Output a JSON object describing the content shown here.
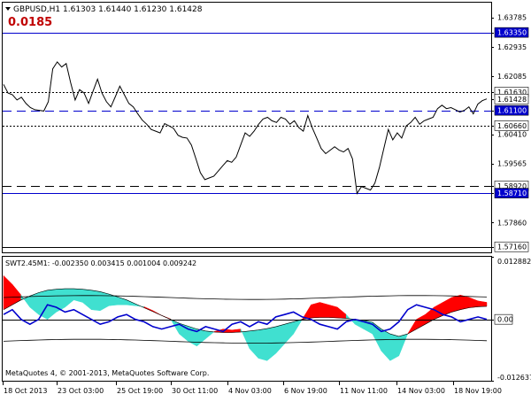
{
  "header": {
    "symbol_line": "GBPUSD,H1  1.61303 1.61440 1.61230 1.61428",
    "spread_value": "0.0185"
  },
  "indicator_header": "SWT2.45M1: -0.002350 0.003415 0.001004 0.009242",
  "copyright": "MetaQuotes 4, © 2001-2013, MetaQuotes Software Corp.",
  "colors": {
    "price_line": "#000000",
    "blue_levels": "#0000cd",
    "fill_red": "#ff0000",
    "fill_cyan": "#40e0d0",
    "signal_line": "#0000cd",
    "label_box": "#0000cd",
    "spread_text": "#c00000"
  },
  "chart_data": [
    {
      "type": "line",
      "title": "GBPUSD,H1",
      "price_axis_labels": [
        "1.63785",
        "1.63350",
        "1.62935",
        "1.62085",
        "1.61630",
        "1.61428",
        "1.61100",
        "1.60660",
        "1.60410",
        "1.59565",
        "1.58920",
        "1.58710",
        "1.57860",
        "1.57160"
      ],
      "ylim": [
        1.57,
        1.6421
      ],
      "close_series": [
        1.6185,
        1.616,
        1.6155,
        1.614,
        1.6148,
        1.613,
        1.6118,
        1.6112,
        1.611,
        1.6108,
        1.6135,
        1.623,
        1.625,
        1.6235,
        1.6245,
        1.619,
        1.614,
        1.617,
        1.616,
        1.613,
        1.6165,
        1.62,
        1.616,
        1.6135,
        1.612,
        1.615,
        1.618,
        1.6155,
        1.613,
        1.612,
        1.61,
        1.6082,
        1.607,
        1.6055,
        1.605,
        1.6045,
        1.6072,
        1.6065,
        1.6058,
        1.6038,
        1.6032,
        1.603,
        1.601,
        1.597,
        1.593,
        1.591,
        1.5915,
        1.592,
        1.5935,
        1.595,
        1.5965,
        1.596,
        1.5975,
        1.601,
        1.6045,
        1.6035,
        1.605,
        1.607,
        1.6085,
        1.609,
        1.608,
        1.6075,
        1.609,
        1.6085,
        1.607,
        1.608,
        1.606,
        1.605,
        1.6095,
        1.606,
        1.603,
        1.6,
        1.5985,
        1.5995,
        1.6005,
        1.5995,
        1.599,
        1.6,
        1.597,
        1.587,
        1.589,
        1.5885,
        1.588,
        1.59,
        1.5945,
        1.6,
        1.6055,
        1.6025,
        1.6045,
        1.603,
        1.6065,
        1.6075,
        1.609,
        1.607,
        1.608,
        1.6085,
        1.609,
        1.6115,
        1.6125,
        1.6115,
        1.6118,
        1.6112,
        1.6105,
        1.611,
        1.612,
        1.61,
        1.6128,
        1.6138,
        1.6143
      ],
      "horizontal_levels": [
        {
          "price": 1.6335,
          "style": "solid",
          "color": "#0000cd",
          "label": "1.63350"
        },
        {
          "price": 1.6163,
          "style": "dotted",
          "color": "#000000",
          "label": "1.61630"
        },
        {
          "price": 1.611,
          "style": "dashed",
          "color": "#0000cd",
          "label": "1.61100"
        },
        {
          "price": 1.6066,
          "style": "dotted",
          "color": "#000000",
          "label": "1.60660"
        },
        {
          "price": 1.5892,
          "style": "dashed",
          "color": "#000000",
          "label": "1.58920"
        },
        {
          "price": 1.5871,
          "style": "solid",
          "color": "#0000cd",
          "label": "1.58710"
        },
        {
          "price": 1.5716,
          "style": "solid",
          "color": "#000000",
          "label": "1.57160"
        }
      ],
      "current_price_label": "1.61428"
    },
    {
      "type": "area",
      "title": "SWT2.45M1",
      "indicator_axis_labels": [
        "0.012882",
        "0.00",
        "-0.012637"
      ],
      "ylim": [
        -0.012637,
        0.012882
      ],
      "fast_series": [
        0.009,
        0.0072,
        0.005,
        0.0025,
        0.001,
        0.0,
        0.0015,
        0.0025,
        0.004,
        0.0035,
        0.002,
        0.0018,
        0.0028,
        0.003,
        0.003,
        0.0028,
        0.0026,
        0.0018,
        0.0008,
        0.0001,
        -0.003,
        -0.0045,
        -0.0055,
        -0.004,
        -0.0025,
        -0.002,
        -0.0022,
        -0.002,
        -0.006,
        -0.008,
        -0.0085,
        -0.007,
        -0.005,
        -0.003,
        0.0,
        0.003,
        0.0035,
        0.003,
        0.0025,
        0.001,
        -0.001,
        -0.002,
        -0.003,
        -0.0065,
        -0.0085,
        -0.0075,
        -0.003,
        0.0,
        0.001,
        0.0025,
        0.0035,
        0.0045,
        0.005,
        0.0045,
        0.0038,
        0.0035
      ],
      "slow_series": [
        0.002,
        0.003,
        0.004,
        0.0048,
        0.0055,
        0.006,
        0.0062,
        0.0063,
        0.0063,
        0.0062,
        0.006,
        0.0057,
        0.0052,
        0.0046,
        0.004,
        0.0032,
        0.0024,
        0.0016,
        0.0008,
        0.0,
        -0.0008,
        -0.0014,
        -0.002,
        -0.0024,
        -0.0026,
        -0.0027,
        -0.0027,
        -0.0026,
        -0.0024,
        -0.0022,
        -0.0019,
        -0.0015,
        -0.001,
        -0.0005,
        0.0,
        0.0003,
        0.0004,
        0.0004,
        0.0003,
        0.0002,
        0.0,
        -0.0002,
        -0.0006,
        -0.002,
        -0.003,
        -0.0035,
        -0.003,
        -0.002,
        -0.001,
        0.0,
        0.0008,
        0.0015,
        0.002,
        0.0024,
        0.0026,
        0.0027
      ],
      "signal_series": [
        0.001,
        0.002,
        0.0,
        -0.001,
        0.0,
        0.003,
        0.0025,
        0.0015,
        0.002,
        0.001,
        0.0,
        -0.001,
        -0.0005,
        0.0005,
        0.001,
        0.0,
        -0.0005,
        -0.0015,
        -0.002,
        -0.0015,
        -0.001,
        -0.002,
        -0.0025,
        -0.0015,
        -0.002,
        -0.0025,
        -0.001,
        -0.0005,
        -0.0015,
        -0.0005,
        -0.001,
        0.0005,
        0.001,
        0.0015,
        0.0005,
        0.0,
        -0.001,
        -0.0015,
        -0.002,
        -0.0005,
        0.0,
        -0.0005,
        -0.001,
        -0.0025,
        -0.002,
        -0.0005,
        0.002,
        0.003,
        0.0025,
        0.002,
        0.001,
        0.0005,
        -0.0005,
        0.0,
        0.0005,
        0.0
      ],
      "envelope_upper": 0.0045,
      "envelope_lower": -0.0045,
      "current_value_label": "0.00"
    }
  ],
  "time_axis_labels": [
    "18 Oct 2013",
    "23 Oct 03:00",
    "25 Oct 19:00",
    "30 Oct 11:00",
    "4 Nov 03:00",
    "6 Nov 19:00",
    "11 Nov 11:00",
    "14 Nov 03:00",
    "18 Nov 19:00"
  ]
}
